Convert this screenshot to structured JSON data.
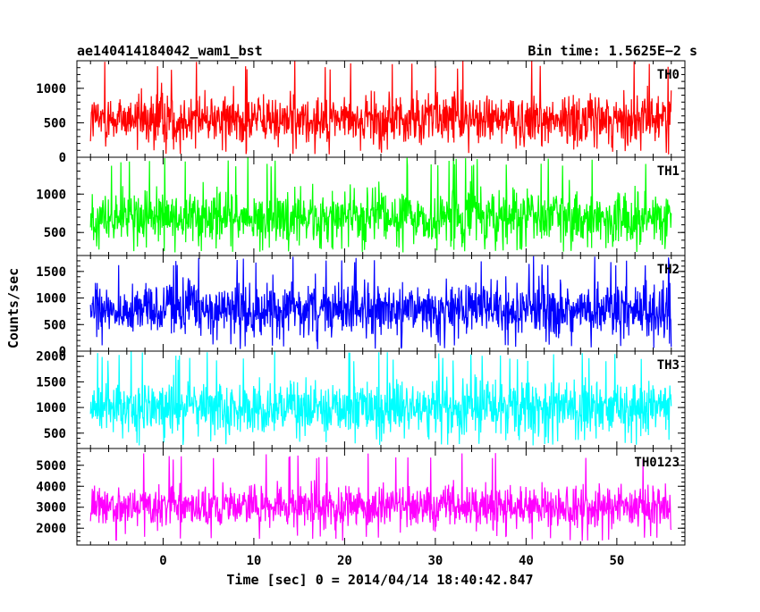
{
  "header": {
    "title": "ae140414184042_wam1_bst",
    "bin_time": "Bin time: 1.5625E−2 s"
  },
  "chart_data": {
    "type": "line",
    "title": "ae140414184042_wam1_bst",
    "xlabel": "Time [sec] 0 = 2014/04/14 18:40:42.847",
    "ylabel": "Counts/sec",
    "xlim": [
      -9.5,
      57.5
    ],
    "x_ticks": [
      0,
      10,
      20,
      30,
      40,
      50
    ],
    "x_tick_labels": [
      "0",
      "10",
      "20",
      "30",
      "40",
      "50"
    ],
    "data_x_range": [
      -8.0,
      56.0
    ],
    "panels": [
      {
        "name": "TH0",
        "color": "#ff0000",
        "ylim": [
          0,
          1400
        ],
        "y_ticks": [
          0,
          500,
          1000
        ],
        "y_tick_labels": [
          "0",
          "500",
          "1000"
        ],
        "min": 40,
        "max": 1400,
        "mean": 560,
        "spread": 230
      },
      {
        "name": "TH1",
        "color": "#00ff00",
        "ylim": [
          200,
          1480
        ],
        "y_ticks": [
          500,
          1000
        ],
        "y_tick_labels": [
          "500",
          "1000"
        ],
        "min": 240,
        "max": 1480,
        "mean": 690,
        "spread": 220
      },
      {
        "name": "TH2",
        "color": "#0000ff",
        "ylim": [
          0,
          1800
        ],
        "y_ticks": [
          0,
          500,
          1000,
          1500
        ],
        "y_tick_labels": [
          "0",
          "500",
          "1000",
          "1500"
        ],
        "min": 30,
        "max": 1800,
        "mean": 780,
        "spread": 310
      },
      {
        "name": "TH3",
        "color": "#00ffff",
        "ylim": [
          200,
          2100
        ],
        "y_ticks": [
          500,
          1000,
          1500,
          2000
        ],
        "y_tick_labels": [
          "500",
          "1000",
          "1500",
          "2000"
        ],
        "min": 260,
        "max": 2100,
        "mean": 1000,
        "spread": 330
      },
      {
        "name": "TH0123",
        "color": "#ff00ff",
        "ylim": [
          1200,
          5800
        ],
        "y_ticks": [
          2000,
          3000,
          4000,
          5000
        ],
        "y_tick_labels": [
          "2000",
          "3000",
          "4000",
          "5000"
        ],
        "min": 1400,
        "max": 5600,
        "mean": 3000,
        "spread": 620
      }
    ]
  }
}
